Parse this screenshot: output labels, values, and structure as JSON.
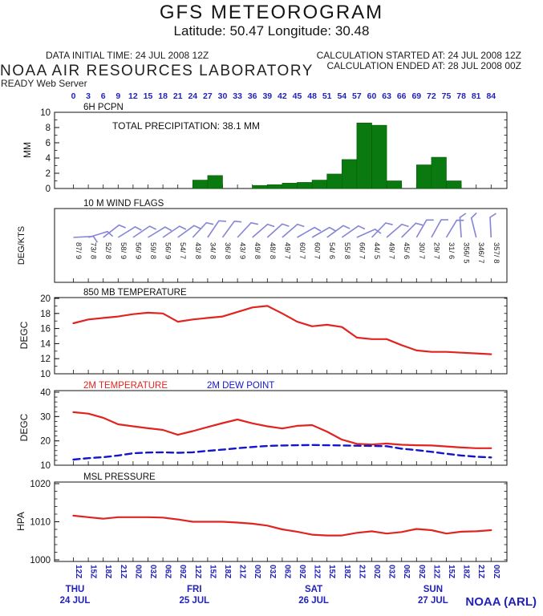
{
  "header": {
    "title": "GFS METEOROGRAM",
    "subtitle": "Latitude: 50.47 Longitude:  30.48",
    "data_initial_time": "DATA INITIAL TIME: 24 JUL 2008 12Z",
    "calc_started": "CALCULATION STARTED AT: 24 JUL 2008 12Z",
    "calc_ended": "CALCULATION ENDED AT: 28 JUL 2008 00Z",
    "organization": "NOAA AIR RESOURCES LABORATORY",
    "server": "READY Web Server",
    "credit": "NOAA (ARL)"
  },
  "colors": {
    "axis_blue": "#2222bb",
    "line_red": "#e02420",
    "bar_green": "#0a7a10",
    "dew_blue": "#1414cc",
    "barb_blue": "#8585d8",
    "frame_black": "#111111"
  },
  "axes": {
    "top_hours": [
      0,
      3,
      6,
      9,
      12,
      15,
      18,
      21,
      24,
      27,
      30,
      33,
      36,
      39,
      42,
      45,
      48,
      51,
      54,
      57,
      60,
      63,
      66,
      69,
      72,
      75,
      78,
      81,
      84
    ],
    "bottom_times": [
      "12Z",
      "15Z",
      "18Z",
      "21Z",
      "00Z",
      "03Z",
      "06Z",
      "09Z",
      "12Z",
      "15Z",
      "18Z",
      "21Z",
      "00Z",
      "03Z",
      "06Z",
      "09Z",
      "12Z",
      "15Z",
      "18Z",
      "21Z",
      "00Z",
      "03Z",
      "06Z",
      "09Z",
      "12Z",
      "15Z",
      "18Z",
      "21Z",
      "00Z"
    ],
    "days": [
      {
        "day": "THU",
        "date": "24 JUL",
        "hour": 0
      },
      {
        "day": "FRI",
        "date": "25 JUL",
        "hour": 24
      },
      {
        "day": "SAT",
        "date": "26 JUL",
        "hour": 48
      },
      {
        "day": "SUN",
        "date": "27 JUL",
        "hour": 72
      }
    ]
  },
  "panels": {
    "precip": {
      "title": "6H PCPN",
      "annotation": "TOTAL PRECIPITATION:  38.1 MM",
      "unit": "MM",
      "yticks": [
        0,
        2,
        4,
        6,
        8,
        10
      ],
      "ylim": [
        0,
        10
      ]
    },
    "wind": {
      "title": "10 M  WIND FLAGS",
      "unit": "DEG/KTS"
    },
    "t850": {
      "title": "850 MB  TEMPERATURE",
      "unit": "DEGC",
      "yticks": [
        10,
        12,
        14,
        16,
        18,
        20
      ],
      "ylim": [
        10,
        20
      ]
    },
    "t2m": {
      "title_temp": "2M TEMPERATURE",
      "title_dew": "2M   DEW POINT",
      "unit": "DEGC",
      "yticks": [
        10,
        20,
        30,
        40
      ],
      "ylim": [
        10,
        40
      ]
    },
    "mslp": {
      "title": "MSL PRESSURE",
      "unit": "HPA",
      "yticks": [
        1000,
        1010,
        1020
      ],
      "ylim": [
        1000,
        1020
      ]
    }
  },
  "chart_data": [
    {
      "type": "bar",
      "name": "6h-precipitation-mm",
      "bar_width_hours": 3,
      "x_start_hours": [
        0,
        3,
        6,
        9,
        12,
        15,
        18,
        21,
        24,
        27,
        30,
        33,
        36,
        39,
        42,
        45,
        48,
        51,
        54,
        57,
        60,
        63,
        66,
        69,
        72,
        75,
        78,
        81
      ],
      "values": [
        0,
        0,
        0,
        0,
        0,
        0,
        0,
        0,
        1.1,
        1.7,
        0,
        0,
        0.4,
        0.5,
        0.7,
        0.8,
        1.1,
        1.9,
        3.8,
        8.6,
        8.3,
        1.0,
        0,
        3.1,
        4.1,
        1.0,
        0,
        0
      ],
      "total_mm": 38.1,
      "ylabel": "MM",
      "ylim": [
        0,
        10
      ]
    },
    {
      "type": "wind-barbs",
      "name": "10m-wind-dir-speed",
      "hours": [
        0,
        3,
        6,
        9,
        12,
        15,
        18,
        21,
        24,
        27,
        30,
        33,
        36,
        39,
        42,
        45,
        48,
        51,
        54,
        57,
        60,
        63,
        66,
        69,
        72,
        75,
        78,
        81,
        84
      ],
      "labels": [
        "87/ 9",
        "73/ 8",
        "52/ 8",
        "58/ 9",
        "56/ 9",
        "59/ 8",
        "56/ 9",
        "54/ 7",
        "43/ 8",
        "34/ 8",
        "36/ 8",
        "43/ 9",
        "49/ 8",
        "48/ 8",
        "49/ 7",
        "60/ 7",
        "60/ 7",
        "54/ 6",
        "55/ 8",
        "66/ 7",
        "44/ 5",
        "49/ 7",
        "45/ 6",
        "30/ 7",
        "29/ 7",
        "31/ 6",
        "356/ 5",
        "346/ 7",
        "357/ 8"
      ],
      "direction_deg": [
        87,
        73,
        52,
        58,
        56,
        59,
        56,
        54,
        43,
        34,
        36,
        43,
        49,
        48,
        49,
        60,
        60,
        54,
        55,
        66,
        44,
        49,
        45,
        30,
        29,
        31,
        356,
        346,
        357
      ],
      "speed_kts": [
        9,
        8,
        8,
        9,
        9,
        8,
        9,
        7,
        8,
        8,
        8,
        9,
        8,
        8,
        7,
        7,
        7,
        6,
        8,
        7,
        5,
        7,
        6,
        7,
        7,
        6,
        5,
        7,
        8
      ],
      "ylabel": "DEG/KTS"
    },
    {
      "type": "line",
      "name": "850mb-temperature-degc",
      "x": [
        0,
        3,
        6,
        9,
        12,
        15,
        18,
        21,
        24,
        27,
        30,
        33,
        36,
        39,
        42,
        45,
        48,
        51,
        54,
        57,
        60,
        63,
        66,
        69,
        72,
        75,
        78,
        81,
        84
      ],
      "values": [
        16.7,
        17.2,
        17.4,
        17.6,
        17.9,
        18.1,
        18.0,
        16.9,
        17.2,
        17.4,
        17.6,
        18.2,
        18.8,
        19.0,
        18.0,
        16.9,
        16.3,
        16.5,
        16.2,
        14.8,
        14.6,
        14.6,
        13.8,
        13.1,
        12.9,
        12.9,
        12.8,
        12.7,
        12.6
      ],
      "ylabel": "DEGC",
      "ylim": [
        10,
        20
      ]
    },
    {
      "type": "line",
      "name": "2m-temperature-and-dew-point-degc",
      "x": [
        0,
        3,
        6,
        9,
        12,
        15,
        18,
        21,
        24,
        27,
        30,
        33,
        36,
        39,
        42,
        45,
        48,
        51,
        54,
        57,
        60,
        63,
        66,
        69,
        72,
        75,
        78,
        81,
        84
      ],
      "series": [
        {
          "name": "2M TEMPERATURE",
          "style": "solid-red",
          "values": [
            31.8,
            31.2,
            29.5,
            26.8,
            26.0,
            25.2,
            24.5,
            22.5,
            24.0,
            25.7,
            27.3,
            28.8,
            27.2,
            26.0,
            25.1,
            26.2,
            26.5,
            23.8,
            20.5,
            18.8,
            18.5,
            18.9,
            18.4,
            18.2,
            18.1,
            17.7,
            17.3,
            17.0,
            17.0
          ]
        },
        {
          "name": "2M DEW POINT",
          "style": "dashed-blue",
          "values": [
            12.3,
            12.9,
            13.3,
            14.0,
            14.9,
            15.2,
            15.3,
            15.1,
            15.3,
            15.9,
            16.4,
            17.0,
            17.5,
            17.9,
            18.1,
            18.2,
            18.3,
            18.2,
            18.1,
            18.0,
            17.9,
            17.8,
            16.8,
            16.2,
            15.5,
            14.7,
            14.0,
            13.5,
            13.2
          ]
        }
      ],
      "ylabel": "DEGC",
      "ylim": [
        10,
        40
      ]
    },
    {
      "type": "line",
      "name": "msl-pressure-hpa",
      "x": [
        0,
        3,
        6,
        9,
        12,
        15,
        18,
        21,
        24,
        27,
        30,
        33,
        36,
        39,
        42,
        45,
        48,
        51,
        54,
        57,
        60,
        63,
        66,
        69,
        72,
        75,
        78,
        81,
        84
      ],
      "values": [
        1011.6,
        1011.2,
        1010.8,
        1011.2,
        1011.2,
        1011.2,
        1011.1,
        1010.6,
        1010.0,
        1010.0,
        1010.0,
        1009.8,
        1009.5,
        1009.0,
        1008.0,
        1007.4,
        1006.6,
        1006.4,
        1006.4,
        1007.1,
        1007.5,
        1006.9,
        1007.3,
        1008.1,
        1007.8,
        1006.9,
        1007.4,
        1007.5,
        1007.8
      ],
      "ylabel": "HPA",
      "ylim": [
        1000,
        1020
      ]
    }
  ]
}
